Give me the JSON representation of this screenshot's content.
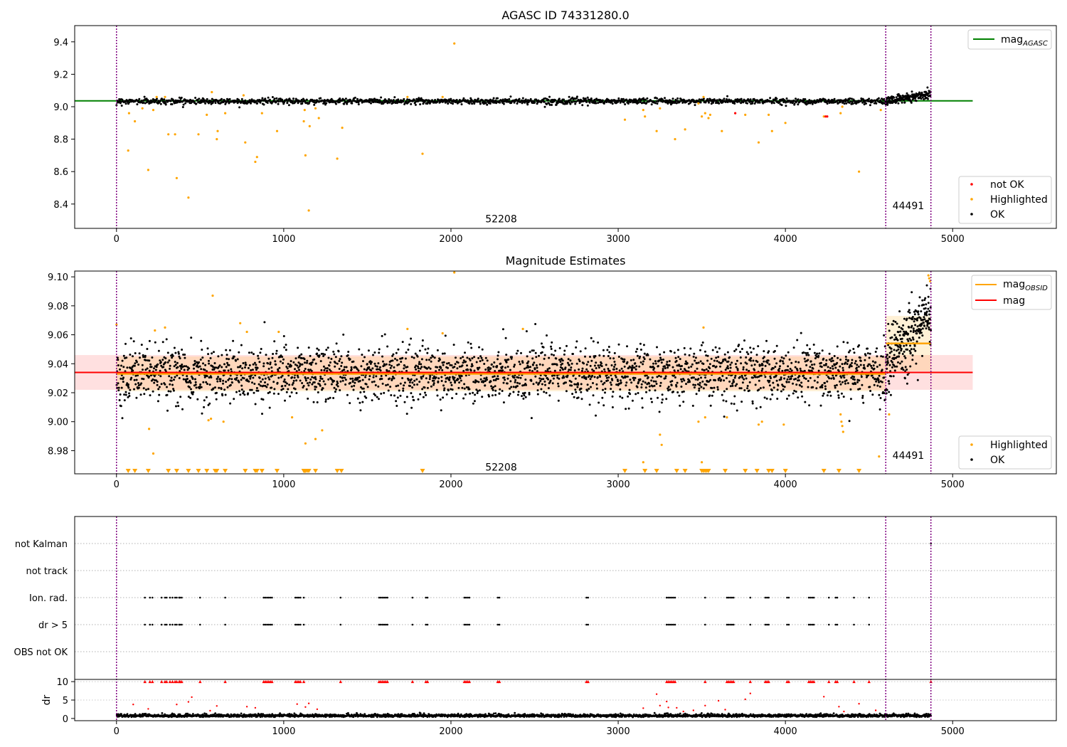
{
  "chart_data": [
    {
      "type": "scatter",
      "title": "AGASC ID 74331280.0",
      "xlim": [
        -250,
        5620
      ],
      "ylim": [
        8.25,
        9.5
      ],
      "xticks": [
        0,
        1000,
        2000,
        3000,
        4000,
        5000
      ],
      "xtick_labels": [
        "0",
        "1000",
        "2000",
        "3000",
        "4000",
        "5000"
      ],
      "yticks": [
        8.4,
        8.6,
        8.8,
        9.0,
        9.2,
        9.4
      ],
      "ytick_labels": [
        "8.4",
        "8.6",
        "8.8",
        "9.0",
        "9.2",
        "9.4"
      ],
      "obsid_boundaries": [
        0,
        4600,
        4870
      ],
      "obsid_labels": [
        {
          "text": "52208",
          "x": 2300,
          "y": 8.31
        },
        {
          "text": "44491",
          "x": 4735,
          "y": 8.39
        }
      ],
      "reference_lines": [
        {
          "name": "mag_AGASC",
          "y": 9.036,
          "x_range": [
            -250,
            5120
          ],
          "color": "#008000"
        }
      ],
      "legend_upper": [
        {
          "label": "mag",
          "subscript": "AGASC",
          "color": "#008000",
          "kind": "line"
        }
      ],
      "legend_lower": [
        {
          "label": "not OK",
          "color": "#ff0000",
          "kind": "dot"
        },
        {
          "label": "Highlighted",
          "color": "#ffa500",
          "kind": "dot"
        },
        {
          "label": "OK",
          "color": "#000000",
          "kind": "dot"
        }
      ],
      "series": [
        {
          "name": "OK",
          "color": "#000000",
          "segments": [
            {
              "x_range": [
                0,
                4600
              ],
              "level": 9.034,
              "spread": 0.009,
              "count": 1500
            },
            {
              "x_range": [
                4600,
                4870
              ],
              "level_start": 9.035,
              "level_end": 9.08,
              "spread": 0.013,
              "count": 170
            }
          ]
        },
        {
          "name": "Highlighted",
          "color": "#ffa500",
          "points": [
            [
              70,
              8.73
            ],
            [
              75,
              8.96
            ],
            [
              110,
              8.91
            ],
            [
              155,
              8.99
            ],
            [
              190,
              8.61
            ],
            [
              220,
              8.98
            ],
            [
              240,
              9.06
            ],
            [
              290,
              9.06
            ],
            [
              310,
              8.83
            ],
            [
              350,
              8.83
            ],
            [
              360,
              8.56
            ],
            [
              430,
              8.44
            ],
            [
              490,
              8.83
            ],
            [
              540,
              8.95
            ],
            [
              570,
              9.09
            ],
            [
              600,
              8.8
            ],
            [
              605,
              8.85
            ],
            [
              650,
              8.96
            ],
            [
              760,
              9.07
            ],
            [
              770,
              8.78
            ],
            [
              830,
              8.66
            ],
            [
              840,
              8.69
            ],
            [
              870,
              8.96
            ],
            [
              960,
              8.85
            ],
            [
              1120,
              8.91
            ],
            [
              1125,
              8.98
            ],
            [
              1130,
              8.7
            ],
            [
              1150,
              8.36
            ],
            [
              1155,
              8.88
            ],
            [
              1190,
              8.99
            ],
            [
              1210,
              8.93
            ],
            [
              1320,
              8.68
            ],
            [
              1350,
              8.87
            ],
            [
              1740,
              9.06
            ],
            [
              1830,
              8.71
            ],
            [
              1950,
              9.06
            ],
            [
              2020,
              9.39
            ],
            [
              3040,
              8.92
            ],
            [
              3150,
              8.98
            ],
            [
              3160,
              8.94
            ],
            [
              3230,
              8.85
            ],
            [
              3250,
              8.99
            ],
            [
              3340,
              8.8
            ],
            [
              3400,
              8.86
            ],
            [
              3480,
              9.02
            ],
            [
              3500,
              8.94
            ],
            [
              3510,
              9.06
            ],
            [
              3520,
              8.96
            ],
            [
              3540,
              8.93
            ],
            [
              3550,
              8.95
            ],
            [
              3620,
              8.85
            ],
            [
              3760,
              8.95
            ],
            [
              3840,
              8.78
            ],
            [
              3900,
              8.95
            ],
            [
              3920,
              8.85
            ],
            [
              4000,
              8.9
            ],
            [
              4230,
              8.94
            ],
            [
              4330,
              8.96
            ],
            [
              4340,
              9.0
            ],
            [
              4440,
              8.6
            ],
            [
              4570,
              8.98
            ]
          ]
        },
        {
          "name": "not OK",
          "color": "#ff0000",
          "points": [
            [
              3700,
              8.96
            ],
            [
              4240,
              8.94
            ],
            [
              4250,
              8.94
            ]
          ]
        }
      ]
    },
    {
      "type": "scatter",
      "title": "Magnitude Estimates",
      "xlim": [
        -250,
        5620
      ],
      "ylim": [
        8.964,
        9.104
      ],
      "xticks": [
        0,
        1000,
        2000,
        3000,
        4000,
        5000
      ],
      "xtick_labels": [
        "0",
        "1000",
        "2000",
        "3000",
        "4000",
        "5000"
      ],
      "yticks": [
        8.98,
        9.0,
        9.02,
        9.04,
        9.06,
        9.08,
        9.1
      ],
      "ytick_labels": [
        "8.98",
        "9.00",
        "9.02",
        "9.04",
        "9.06",
        "9.08",
        "9.10"
      ],
      "obsid_boundaries": [
        0,
        4600,
        4870
      ],
      "obsid_labels": [
        {
          "text": "52208",
          "x": 2300,
          "y": 8.9687
        },
        {
          "text": "44491",
          "x": 4735,
          "y": 8.9767
        }
      ],
      "mag": {
        "y": 9.034,
        "band": [
          9.022,
          9.046
        ],
        "x_range": [
          -250,
          5120
        ],
        "color": "#ff0000"
      },
      "mag_obsid": [
        {
          "x_range": [
            0,
            4600
          ],
          "y": 9.033,
          "band": [
            9.021,
            9.045
          ]
        },
        {
          "x_range": [
            4600,
            4870
          ],
          "y": 9.054,
          "band": [
            9.035,
            9.073
          ]
        }
      ],
      "legend_upper": [
        {
          "label": "mag",
          "subscript": "OBSID",
          "color": "#ffa500",
          "kind": "line"
        },
        {
          "label": "mag",
          "subscript": "",
          "color": "#ff0000",
          "kind": "line"
        }
      ],
      "legend_lower": [
        {
          "label": "Highlighted",
          "color": "#ffa500",
          "kind": "dot"
        },
        {
          "label": "OK",
          "color": "#000000",
          "kind": "dot"
        }
      ],
      "series": [
        {
          "name": "OK",
          "color": "#000000",
          "segments": [
            {
              "x_range": [
                0,
                4600
              ],
              "level": 9.033,
              "spread": 0.0095,
              "count": 2600
            },
            {
              "x_range": [
                4600,
                4870
              ],
              "level_start": 9.04,
              "level_end": 9.075,
              "spread": 0.011,
              "count": 260
            }
          ]
        },
        {
          "name": "Highlighted",
          "color": "#ffa500",
          "points": [
            [
              0,
              9.067
            ],
            [
              230,
              9.063
            ],
            [
              290,
              9.065
            ],
            [
              195,
              8.995
            ],
            [
              220,
              8.978
            ],
            [
              550,
              9.001
            ],
            [
              565,
              9.002
            ],
            [
              575,
              9.087
            ],
            [
              640,
              9.0
            ],
            [
              740,
              9.068
            ],
            [
              780,
              9.062
            ],
            [
              970,
              9.062
            ],
            [
              1050,
              9.003
            ],
            [
              1130,
              8.985
            ],
            [
              1190,
              8.988
            ],
            [
              1230,
              8.994
            ],
            [
              1740,
              9.064
            ],
            [
              1950,
              9.061
            ],
            [
              2020,
              9.103
            ],
            [
              2430,
              9.064
            ],
            [
              3150,
              8.972
            ],
            [
              3250,
              8.991
            ],
            [
              3260,
              8.984
            ],
            [
              3480,
              9.0
            ],
            [
              3500,
              8.972
            ],
            [
              3510,
              9.065
            ],
            [
              3520,
              9.003
            ],
            [
              3650,
              9.003
            ],
            [
              3840,
              8.998
            ],
            [
              3860,
              9.0
            ],
            [
              3990,
              8.998
            ],
            [
              4330,
              9.005
            ],
            [
              4335,
              9.0
            ],
            [
              4340,
              8.997
            ],
            [
              4345,
              8.993
            ],
            [
              4560,
              8.976
            ],
            [
              4620,
              9.005
            ],
            [
              4855,
              9.101
            ],
            [
              4860,
              9.099
            ],
            [
              4865,
              9.097
            ]
          ]
        },
        {
          "name": "Highlighted (below axis)",
          "color": "#ffa500",
          "marker": "triangle-down",
          "x": [
            70,
            110,
            190,
            310,
            360,
            430,
            490,
            540,
            590,
            600,
            650,
            770,
            830,
            840,
            870,
            960,
            1120,
            1125,
            1130,
            1140,
            1150,
            1190,
            1320,
            1345,
            1830,
            3040,
            3160,
            3230,
            3350,
            3400,
            3500,
            3510,
            3520,
            3530,
            3540,
            3640,
            3760,
            3830,
            3900,
            3920,
            4000,
            4230,
            4320,
            4440
          ]
        }
      ]
    },
    {
      "type": "scatter",
      "title": "",
      "xlim": [
        -250,
        5620
      ],
      "xticks": [
        0,
        1000,
        2000,
        3000,
        4000,
        5000
      ],
      "xtick_labels": [
        "0",
        "1000",
        "2000",
        "3000",
        "4000",
        "5000"
      ],
      "obsid_boundaries": [
        0,
        4600,
        4870
      ],
      "flag_rows": [
        "not Kalman",
        "not track",
        "Ion. rad.",
        "dr > 5",
        "OBS not OK"
      ],
      "flag_points": {
        "not Kalman": [
          4870
        ],
        "not track": [],
        "Ion. rad.": [
          170,
          200,
          215,
          270,
          290,
          300,
          320,
          335,
          350,
          360,
          375,
          380,
          390,
          500,
          650,
          880,
          890,
          900,
          910,
          920,
          930,
          1070,
          1080,
          1090,
          1100,
          1120,
          1340,
          1570,
          1580,
          1590,
          1600,
          1610,
          1620,
          1770,
          1850,
          1860,
          2080,
          2090,
          2100,
          2110,
          2280,
          2290,
          2810,
          2820,
          3290,
          3300,
          3310,
          3320,
          3330,
          3340,
          3520,
          3650,
          3660,
          3670,
          3680,
          3690,
          3790,
          3880,
          3890,
          3900,
          4010,
          4020,
          4140,
          4150,
          4160,
          4170,
          4260,
          4300,
          4310,
          4410,
          4500
        ],
        "dr > 5": [
          170,
          200,
          215,
          270,
          290,
          300,
          320,
          335,
          350,
          360,
          375,
          380,
          390,
          500,
          650,
          880,
          890,
          900,
          910,
          920,
          930,
          1070,
          1080,
          1090,
          1100,
          1120,
          1340,
          1570,
          1580,
          1590,
          1600,
          1610,
          1620,
          1770,
          1850,
          1860,
          2080,
          2090,
          2100,
          2110,
          2280,
          2290,
          2810,
          2820,
          3290,
          3300,
          3310,
          3320,
          3330,
          3340,
          3520,
          3650,
          3660,
          3670,
          3680,
          3690,
          3790,
          3880,
          3890,
          3900,
          4010,
          4020,
          4140,
          4150,
          4160,
          4170,
          4260,
          4300,
          4310,
          4410,
          4500
        ],
        "OBS not OK": []
      },
      "dr": {
        "ylabel": "dr",
        "yticks": [
          0,
          5,
          10
        ],
        "ytick_labels": [
          "0",
          "5",
          "10"
        ],
        "ylim": [
          -0.6,
          10.6
        ],
        "cap": 10,
        "capped_x": [
          170,
          200,
          215,
          270,
          290,
          300,
          320,
          335,
          350,
          360,
          375,
          380,
          390,
          500,
          650,
          880,
          890,
          900,
          910,
          920,
          930,
          1070,
          1080,
          1090,
          1100,
          1120,
          1340,
          1570,
          1580,
          1590,
          1600,
          1610,
          1620,
          1770,
          1850,
          1860,
          2080,
          2090,
          2100,
          2110,
          2280,
          2290,
          2810,
          2820,
          3290,
          3300,
          3310,
          3320,
          3330,
          3340,
          3520,
          3650,
          3660,
          3670,
          3680,
          3690,
          3790,
          3880,
          3890,
          3900,
          4010,
          4020,
          4140,
          4150,
          4160,
          4170,
          4260,
          4300,
          4310,
          4410,
          4500,
          4870
        ],
        "mid_points": [
          [
            100,
            3.8
          ],
          [
            190,
            2.6
          ],
          [
            360,
            3.8
          ],
          [
            430,
            4.5
          ],
          [
            450,
            5.8
          ],
          [
            560,
            2.1
          ],
          [
            600,
            3.4
          ],
          [
            780,
            3.2
          ],
          [
            830,
            2.9
          ],
          [
            1080,
            3.9
          ],
          [
            1130,
            3.1
          ],
          [
            1150,
            4.1
          ],
          [
            1200,
            2.5
          ],
          [
            3150,
            2.8
          ],
          [
            3230,
            6.6
          ],
          [
            3250,
            3.5
          ],
          [
            3290,
            4.6
          ],
          [
            3300,
            3.0
          ],
          [
            3350,
            2.9
          ],
          [
            3390,
            1.9
          ],
          [
            3450,
            2.2
          ],
          [
            3520,
            3.5
          ],
          [
            3600,
            4.8
          ],
          [
            3640,
            2.4
          ],
          [
            3760,
            5.2
          ],
          [
            3790,
            6.8
          ],
          [
            4230,
            5.9
          ],
          [
            4320,
            3.2
          ],
          [
            4350,
            1.9
          ],
          [
            4440,
            4.0
          ],
          [
            4540,
            2.2
          ]
        ],
        "baseline": {
          "level": 0.55,
          "spread": 0.35,
          "count": 2400
        }
      }
    }
  ]
}
